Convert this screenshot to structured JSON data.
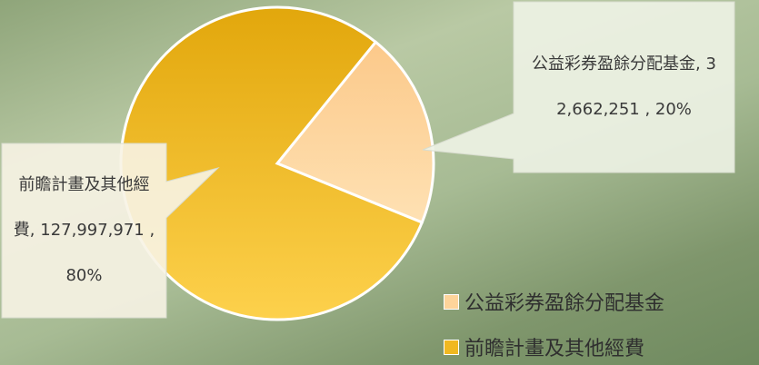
{
  "chart_data": {
    "type": "pie",
    "categories": [
      "公益彩券盈餘分配基金",
      "前瞻計畫及其他經費"
    ],
    "values": [
      32662251,
      127997971
    ],
    "value_labels": [
      "公益彩券盈餘分配基金, 32,662,251 , 20%",
      "前瞻計畫及其他經費, 127,997,971 , 80%"
    ],
    "colors": [
      "#fdd49a",
      "#f0b821"
    ],
    "start_angle": 39,
    "legend": "bottom-right"
  }
}
